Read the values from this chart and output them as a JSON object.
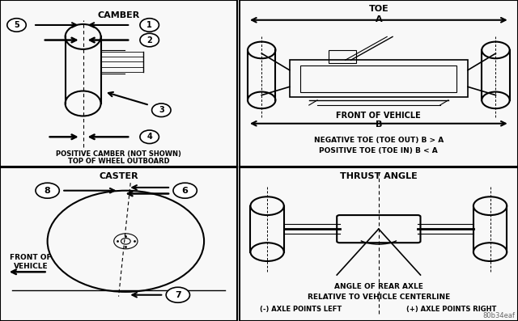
{
  "bg_color": "#f0f0f0",
  "panel_bg": "#f4f4f4",
  "border_color": "#000000",
  "panels": {
    "top_left": {
      "title": "CAMBER",
      "subtitle1": "POSITIVE CAMBER (NOT SHOWN)",
      "subtitle2": "TOP OF WHEEL OUTBOARD"
    },
    "top_right": {
      "title": "TOE",
      "label_A": "A",
      "label_B": "B",
      "text1": "FRONT OF VEHICLE",
      "text2": "NEGATIVE TOE (TOE OUT) B > A",
      "text3": "POSITIVE TOE (TOE IN) B < A"
    },
    "bottom_left": {
      "title": "CASTER",
      "text1": "FRONT OF",
      "text2": "VEHICLE"
    },
    "bottom_right": {
      "title": "THRUST ANGLE",
      "text1": "ANGLE OF REAR AXLE",
      "text2": "RELATIVE TO VEHICLE CENTERLINE",
      "text3": "(-) AXLE POINTS LEFT",
      "text4": "(+) AXLE POINTS RIGHT"
    }
  },
  "watermark": "80b34eaf"
}
